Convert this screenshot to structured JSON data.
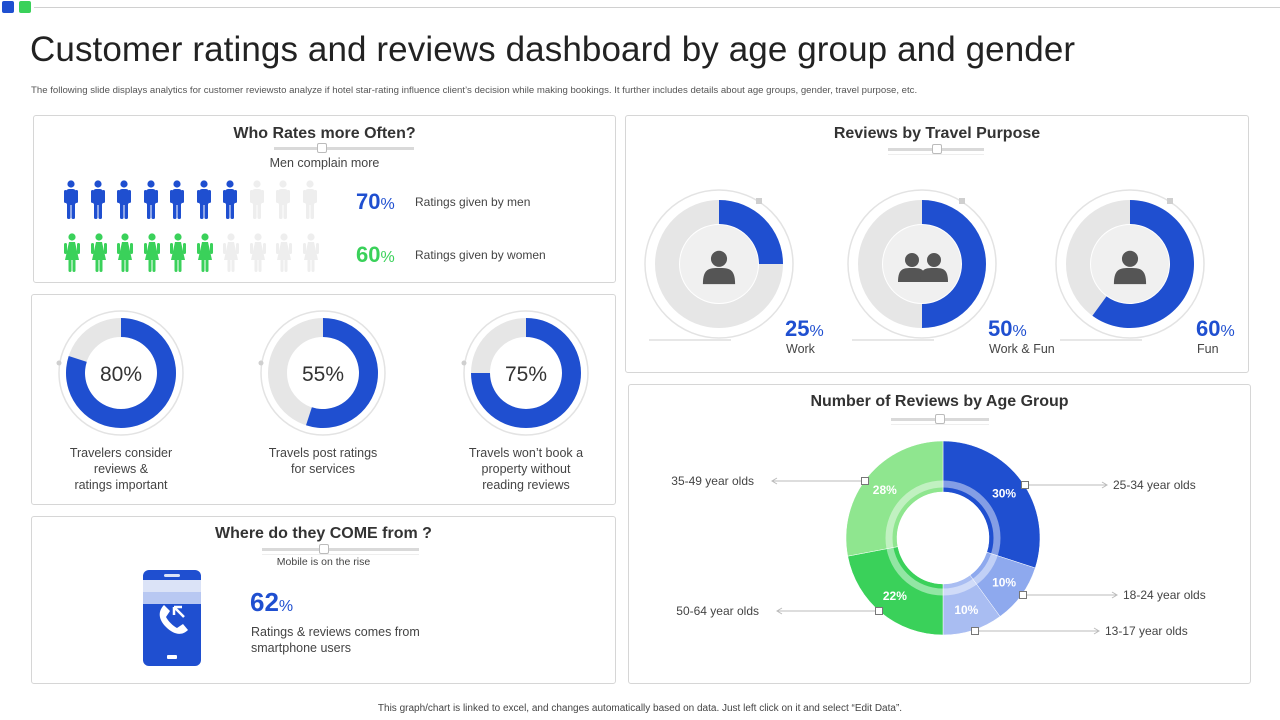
{
  "title": "Customer ratings and reviews dashboard by age group and gender",
  "subtitle": "The following slide displays analytics for customer reviewsto analyze if hotel star-rating influence client’s decision while making bookings. It further includes details about age groups, gender, travel purpose, etc.",
  "footer": "This graph/chart is linked to excel, and changes automatically based on data. Just left click on it and select “Edit Data”.",
  "colors": {
    "blue": "#1f4fd0",
    "green": "#3ad15a",
    "light_green": "#8fe68f",
    "light_blue": "#8ea9ee",
    "pale_blue": "#a9bdf2",
    "gray": "#e6e6e6",
    "icon_gray": "#555555"
  },
  "who_rates": {
    "title": "Who Rates more Often?",
    "subtitle": "Men complain more",
    "men": {
      "value": "70",
      "unit": "%",
      "label": "Ratings given by men",
      "filled": 7,
      "total": 10
    },
    "women": {
      "value": "60",
      "unit": "%",
      "label": "Ratings given by women",
      "filled": 6,
      "total": 10
    }
  },
  "stats": [
    {
      "value": 80,
      "text": "80%",
      "label": [
        "Travelers  consider",
        "reviews  &",
        "ratings important"
      ]
    },
    {
      "value": 55,
      "text": "55%",
      "label": [
        "Travels  post ratings",
        "for services"
      ]
    },
    {
      "value": 75,
      "text": "75%",
      "label": [
        "Travels  won’t book a",
        "property without",
        "reading reviews"
      ]
    }
  ],
  "come_from": {
    "title": "Where do they COME from ?",
    "subtitle": "Mobile is on the rise",
    "value": "62",
    "unit": "%",
    "label_line1": "Ratings & reviews  comes from",
    "label_line2": "smartphone users"
  },
  "travel_purpose": {
    "title": "Reviews by Travel Purpose",
    "items": [
      {
        "value": 25,
        "text": "25",
        "unit": "%",
        "label": "Work",
        "icon": "single-person-icon"
      },
      {
        "value": 50,
        "text": "50",
        "unit": "%",
        "label": "Work & Fun",
        "icon": "two-people-icon"
      },
      {
        "value": 60,
        "text": "60",
        "unit": "%",
        "label": "Fun",
        "icon": "single-person-icon"
      }
    ]
  },
  "chart_data": {
    "type": "pie",
    "title": "Number of Reviews by Age Group",
    "categories": [
      "25-34 year olds",
      "18-24 year olds",
      "13-17 year olds",
      "50-64 year olds",
      "35-49 year olds"
    ],
    "values": [
      30,
      10,
      10,
      22,
      28
    ],
    "value_labels": [
      "30%",
      "10%",
      "10%",
      "22%",
      "28%"
    ]
  }
}
